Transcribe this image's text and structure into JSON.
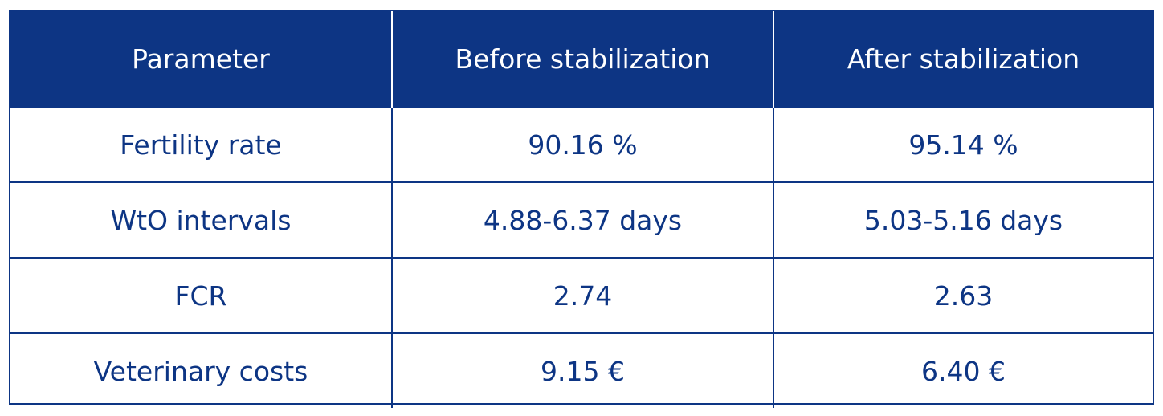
{
  "table": {
    "headers": [
      "Parameter",
      "Before stabilization",
      "After stabilization"
    ],
    "rows": [
      [
        "Fertility rate",
        "90.16 %",
        "95.14 %"
      ],
      [
        "WtO intervals",
        "4.88-6.37 days",
        "5.03-5.16 days"
      ],
      [
        "FCR",
        "2.74",
        "2.63"
      ],
      [
        "Veterinary costs",
        "9.15 €",
        "6.40 €"
      ]
    ]
  },
  "colors": {
    "header_bg": "#0d3584",
    "header_text": "#ffffff",
    "body_text": "#0d3584"
  }
}
